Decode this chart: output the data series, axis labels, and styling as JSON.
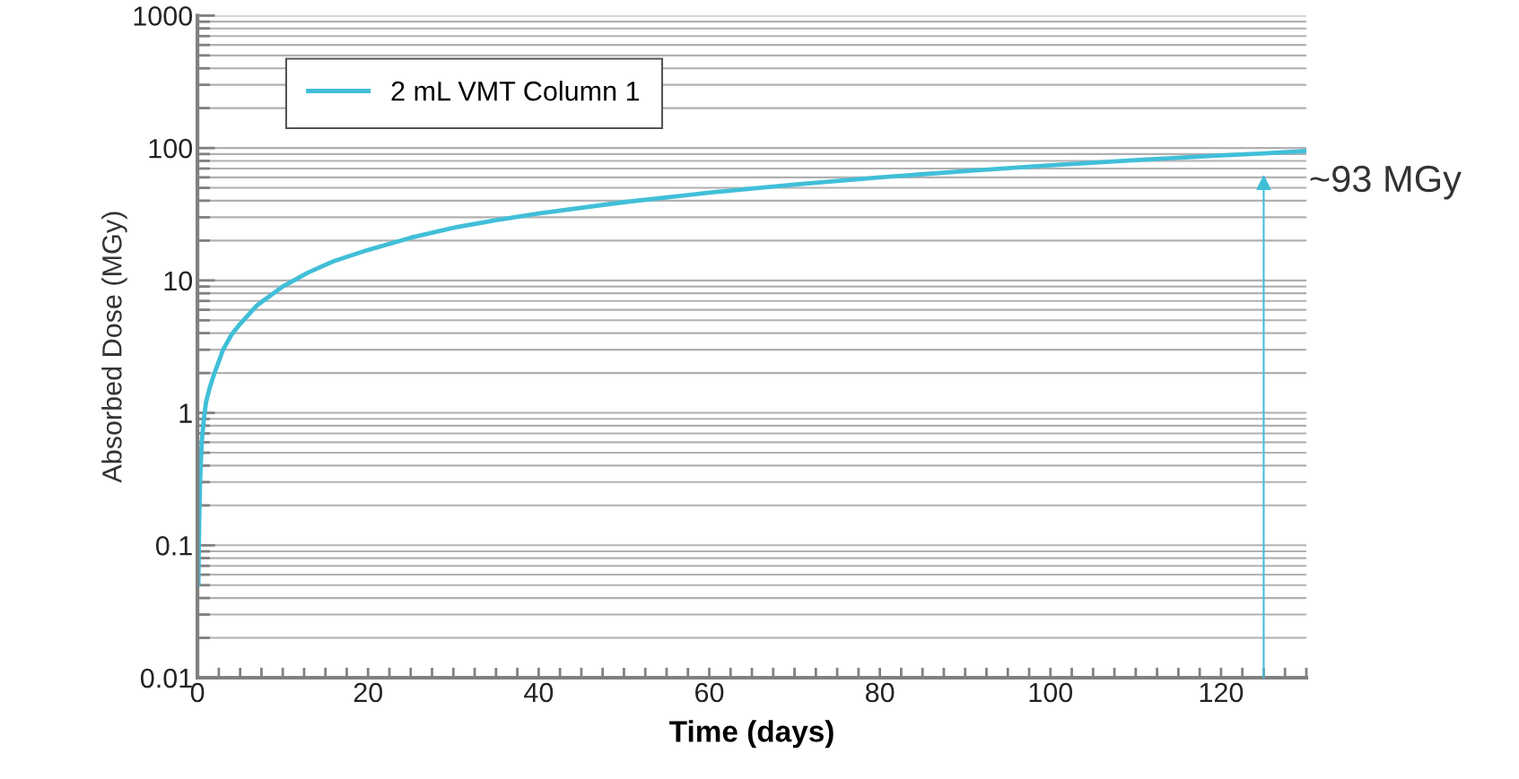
{
  "chart_data": {
    "type": "line",
    "xlabel": "Time (days)",
    "ylabel": "Absorbed Dose (MGy)",
    "log": "y",
    "xlim": [
      0,
      130
    ],
    "xticks": [
      0,
      20,
      40,
      60,
      80,
      100,
      120
    ],
    "ylim": [
      0.01,
      1000
    ],
    "yticks": [
      0.01,
      0.1,
      1,
      10,
      100,
      1000
    ],
    "grid": "y",
    "legend": "top left",
    "marker": "none",
    "line_style": "solid",
    "series": [
      {
        "name": "2 mL VMT Column 1",
        "color": "#41bfd8",
        "x": [
          0.1,
          0.2,
          0.3,
          0.5,
          0.75,
          1,
          1.5,
          2,
          3,
          4,
          5,
          7,
          10,
          13,
          16,
          20,
          25,
          30,
          35,
          40,
          50,
          60,
          70,
          80,
          90,
          100,
          110,
          120,
          125,
          130
        ],
        "values": [
          0.05,
          0.15,
          0.3,
          0.6,
          0.9,
          1.2,
          1.6,
          2,
          3,
          3.9,
          4.7,
          6.5,
          9,
          11.5,
          14,
          17,
          21,
          25,
          28.5,
          32,
          39,
          46,
          53,
          60,
          67,
          74,
          81,
          88,
          91,
          95
        ]
      }
    ],
    "annotations": [
      {
        "text": "~93 MGy",
        "x": 125,
        "y": 93
      }
    ]
  }
}
